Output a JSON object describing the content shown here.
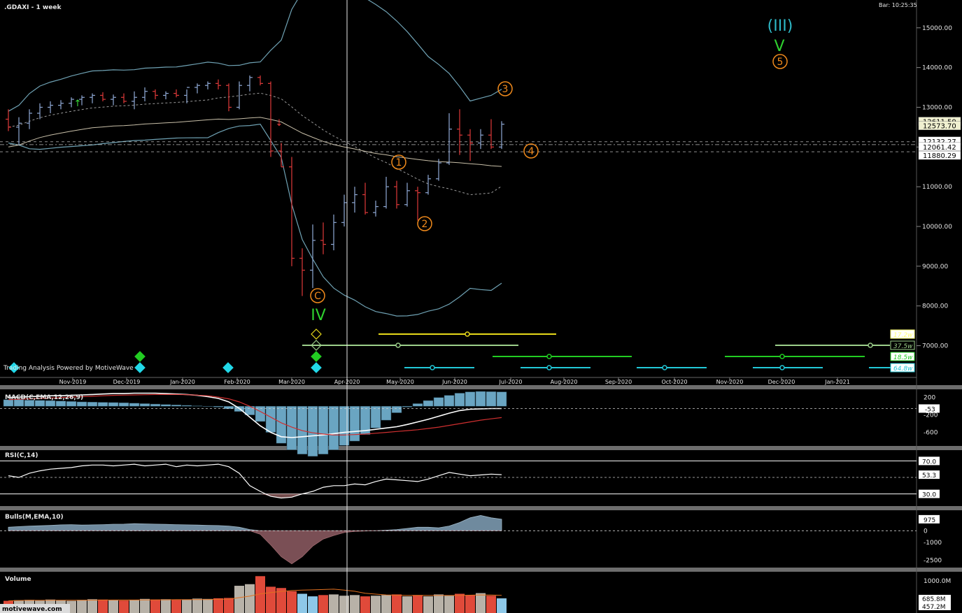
{
  "header": {
    "symbol_label": ".GDAXI - 1 week",
    "bar_time": "Bar: 10:25:35",
    "powered_by": "Trading Analysis Powered by MotiveWave",
    "watermark": "motivewave.com"
  },
  "colors": {
    "background": "#000000",
    "up_bar": "#8fa9d6",
    "down_bar": "#e03a3a",
    "bollinger": "#6fa2b4",
    "ma_solid": "#c8bfa8",
    "ma_dashed": "#9a9a9a",
    "wave_orange": "#f08a1c",
    "wave_green": "#2fd12f",
    "wave_teal": "#2eb8c6",
    "macd_hist": "#6aa5c2",
    "grid_sep": "#7a7a7a"
  },
  "chart_data": [
    {
      "type": "ohlc",
      "name": "price",
      "title": ".GDAXI - 1 week",
      "x_ticks": [
        "Nov-2019",
        "Dec-2019",
        "Jan-2020",
        "Feb-2020",
        "Mar-2020",
        "Apr-2020",
        "May-2020",
        "Jun-2020",
        "Jul-2020",
        "Aug-2020",
        "Sep-2020",
        "Oct-2020",
        "Nov-2020",
        "Dec-2020",
        "Jan-2021"
      ],
      "y_ticks": [
        "15000.00",
        "14000.00",
        "13000.00",
        "12000.00",
        "11000.00",
        "10000.00",
        "9000.00",
        "8000.00",
        "7000.00"
      ],
      "ylim": [
        6200,
        15700
      ],
      "price_labels": [
        "12611.50",
        "12573.70",
        "12132.27",
        "12061.42",
        "11880.29"
      ],
      "wave_labels": [
        {
          "text": "(III)",
          "color": "teal"
        },
        {
          "text": "V",
          "color": "green"
        },
        {
          "text": "5",
          "color": "orange"
        },
        {
          "text": "3",
          "color": "orange"
        },
        {
          "text": "4",
          "color": "orange"
        },
        {
          "text": "1",
          "color": "orange"
        },
        {
          "text": "2",
          "color": "orange"
        },
        {
          "text": "C",
          "color": "orange"
        },
        {
          "text": "IV",
          "color": "green"
        }
      ],
      "cycle_labels": [
        "17.2w",
        "37.5w",
        "18.5w",
        "64.8w"
      ],
      "bars": [
        {
          "o": 12700,
          "h": 12950,
          "l": 12400,
          "c": 12500
        },
        {
          "o": 12500,
          "h": 12750,
          "l": 12050,
          "c": 12600
        },
        {
          "o": 12600,
          "h": 12950,
          "l": 12450,
          "c": 12850
        },
        {
          "o": 12850,
          "h": 13100,
          "l": 12700,
          "c": 13000
        },
        {
          "o": 13000,
          "h": 13150,
          "l": 12850,
          "c": 13050
        },
        {
          "o": 13050,
          "h": 13180,
          "l": 12950,
          "c": 13100
        },
        {
          "o": 13100,
          "h": 13250,
          "l": 13000,
          "c": 13200
        },
        {
          "o": 13200,
          "h": 13300,
          "l": 13050,
          "c": 13250
        },
        {
          "o": 13250,
          "h": 13350,
          "l": 13100,
          "c": 13300
        },
        {
          "o": 13300,
          "h": 13380,
          "l": 13150,
          "c": 13200
        },
        {
          "o": 13200,
          "h": 13320,
          "l": 13050,
          "c": 13250
        },
        {
          "o": 13250,
          "h": 13350,
          "l": 13100,
          "c": 13150
        },
        {
          "o": 13150,
          "h": 13400,
          "l": 12950,
          "c": 13250
        },
        {
          "o": 13250,
          "h": 13500,
          "l": 13150,
          "c": 13400
        },
        {
          "o": 13400,
          "h": 13450,
          "l": 13200,
          "c": 13300
        },
        {
          "o": 13300,
          "h": 13400,
          "l": 13200,
          "c": 13350
        },
        {
          "o": 13350,
          "h": 13450,
          "l": 13250,
          "c": 13300
        },
        {
          "o": 13300,
          "h": 13450,
          "l": 13100,
          "c": 13500
        },
        {
          "o": 13500,
          "h": 13600,
          "l": 13350,
          "c": 13550
        },
        {
          "o": 13550,
          "h": 13650,
          "l": 13450,
          "c": 13600
        },
        {
          "o": 13600,
          "h": 13700,
          "l": 13450,
          "c": 13550
        },
        {
          "o": 13550,
          "h": 13600,
          "l": 12900,
          "c": 13000
        },
        {
          "o": 13000,
          "h": 13650,
          "l": 12950,
          "c": 13550
        },
        {
          "o": 13550,
          "h": 13800,
          "l": 13400,
          "c": 13750
        },
        {
          "o": 13750,
          "h": 13800,
          "l": 13550,
          "c": 13600
        },
        {
          "o": 13600,
          "h": 13650,
          "l": 11750,
          "c": 11900
        },
        {
          "o": 11900,
          "h": 12100,
          "l": 11500,
          "c": 11500
        },
        {
          "o": 11500,
          "h": 11750,
          "l": 9000,
          "c": 9200
        },
        {
          "o": 9200,
          "h": 9450,
          "l": 8250,
          "c": 8900
        },
        {
          "o": 8900,
          "h": 10050,
          "l": 8450,
          "c": 9650
        },
        {
          "o": 9650,
          "h": 10100,
          "l": 9300,
          "c": 9550
        },
        {
          "o": 9550,
          "h": 10300,
          "l": 9400,
          "c": 10100
        },
        {
          "o": 10100,
          "h": 10800,
          "l": 10000,
          "c": 10600
        },
        {
          "o": 10600,
          "h": 11000,
          "l": 10350,
          "c": 10800
        },
        {
          "o": 10800,
          "h": 11100,
          "l": 10300,
          "c": 10350
        },
        {
          "o": 10350,
          "h": 10650,
          "l": 10250,
          "c": 10500
        },
        {
          "o": 10500,
          "h": 11250,
          "l": 10450,
          "c": 11000
        },
        {
          "o": 11000,
          "h": 11150,
          "l": 10450,
          "c": 10550
        },
        {
          "o": 10550,
          "h": 11100,
          "l": 10500,
          "c": 10900
        },
        {
          "o": 10900,
          "h": 11000,
          "l": 10150,
          "c": 10850
        },
        {
          "o": 10850,
          "h": 11300,
          "l": 10800,
          "c": 11200
        },
        {
          "o": 11200,
          "h": 11700,
          "l": 11150,
          "c": 11600
        },
        {
          "o": 11600,
          "h": 12850,
          "l": 11550,
          "c": 12450
        },
        {
          "o": 12450,
          "h": 12950,
          "l": 11800,
          "c": 12300
        },
        {
          "o": 12300,
          "h": 12450,
          "l": 11650,
          "c": 12100
        },
        {
          "o": 12100,
          "h": 12450,
          "l": 11950,
          "c": 12300
        },
        {
          "o": 12300,
          "h": 12700,
          "l": 11950,
          "c": 12000
        },
        {
          "o": 12000,
          "h": 12650,
          "l": 11950,
          "c": 12573.7
        }
      ]
    },
    {
      "type": "bar",
      "name": "macd",
      "title": "MACD(C,EMA,12,26,9)",
      "y_ticks": [
        "200",
        "-200",
        "-600"
      ],
      "current_label": "-53",
      "ylim": [
        -880,
        340
      ],
      "hist": [
        150,
        150,
        140,
        135,
        130,
        120,
        110,
        100,
        95,
        90,
        85,
        80,
        70,
        60,
        50,
        40,
        30,
        20,
        10,
        0,
        -20,
        -60,
        -120,
        -200,
        -350,
        -600,
        -850,
        -1000,
        -1100,
        -1150,
        -1100,
        -1000,
        -900,
        -800,
        -650,
        -500,
        -320,
        -150,
        -20,
        60,
        130,
        200,
        250,
        300,
        330,
        340,
        335,
        330
      ],
      "macd": [
        200,
        210,
        220,
        230,
        240,
        240,
        250,
        260,
        270,
        280,
        290,
        290,
        300,
        300,
        300,
        290,
        280,
        270,
        250,
        220,
        180,
        100,
        -50,
        -250,
        -450,
        -600,
        -700,
        -720,
        -700,
        -680,
        -660,
        -630,
        -600,
        -580,
        -560,
        -530,
        -500,
        -470,
        -420,
        -360,
        -300,
        -230,
        -160,
        -100,
        -70,
        -60,
        -53,
        -53
      ],
      "signal": [
        150,
        160,
        170,
        180,
        190,
        200,
        210,
        220,
        230,
        240,
        250,
        255,
        260,
        265,
        270,
        270,
        270,
        265,
        255,
        240,
        210,
        170,
        100,
        0,
        -120,
        -250,
        -380,
        -480,
        -560,
        -610,
        -640,
        -660,
        -660,
        -650,
        -640,
        -620,
        -600,
        -580,
        -560,
        -540,
        -510,
        -480,
        -440,
        -400,
        -360,
        -320,
        -290,
        -260
      ]
    },
    {
      "type": "line",
      "name": "rsi",
      "title": "RSI(C,14)",
      "y_ticks": [
        "70.0",
        "30.0"
      ],
      "current_label": "53.3",
      "ylim": [
        22,
        78
      ],
      "values": [
        52,
        50,
        55,
        58,
        60,
        61,
        62,
        64,
        65,
        65,
        64,
        65,
        66,
        64,
        65,
        66,
        63,
        65,
        64,
        65,
        66,
        63,
        55,
        40,
        33,
        27,
        25,
        26,
        30,
        33,
        38,
        40,
        40,
        42,
        41,
        45,
        48,
        47,
        46,
        45,
        48,
        52,
        56,
        54,
        52,
        53,
        54,
        53.3
      ]
    },
    {
      "type": "area",
      "name": "bulls",
      "title": "Bulls(M,EMA,10)",
      "y_ticks": [
        "0",
        "-1000",
        "-2500"
      ],
      "current_label": "975",
      "ylim": [
        -3000,
        1500
      ],
      "values": [
        300,
        350,
        400,
        420,
        450,
        500,
        520,
        480,
        500,
        520,
        550,
        560,
        600,
        580,
        560,
        540,
        520,
        500,
        480,
        460,
        440,
        400,
        300,
        100,
        -300,
        -1200,
        -2200,
        -2800,
        -2200,
        -1300,
        -700,
        -400,
        -150,
        -50,
        -20,
        0,
        50,
        100,
        200,
        300,
        300,
        250,
        400,
        700,
        1100,
        1300,
        1100,
        975
      ]
    },
    {
      "type": "bar",
      "name": "volume",
      "title": "Volume",
      "y_ticks": [
        "1000.0M"
      ],
      "current_labels": [
        "685.8M",
        "457.2M"
      ],
      "values": [
        380,
        400,
        410,
        390,
        420,
        400,
        380,
        410,
        430,
        420,
        400,
        390,
        410,
        440,
        420,
        430,
        410,
        420,
        450,
        440,
        460,
        470,
        850,
        900,
        1150,
        820,
        780,
        680,
        600,
        520,
        560,
        580,
        540,
        560,
        520,
        540,
        560,
        580,
        520,
        560,
        520,
        580,
        540,
        600,
        560,
        620,
        540,
        457.2
      ]
    }
  ]
}
